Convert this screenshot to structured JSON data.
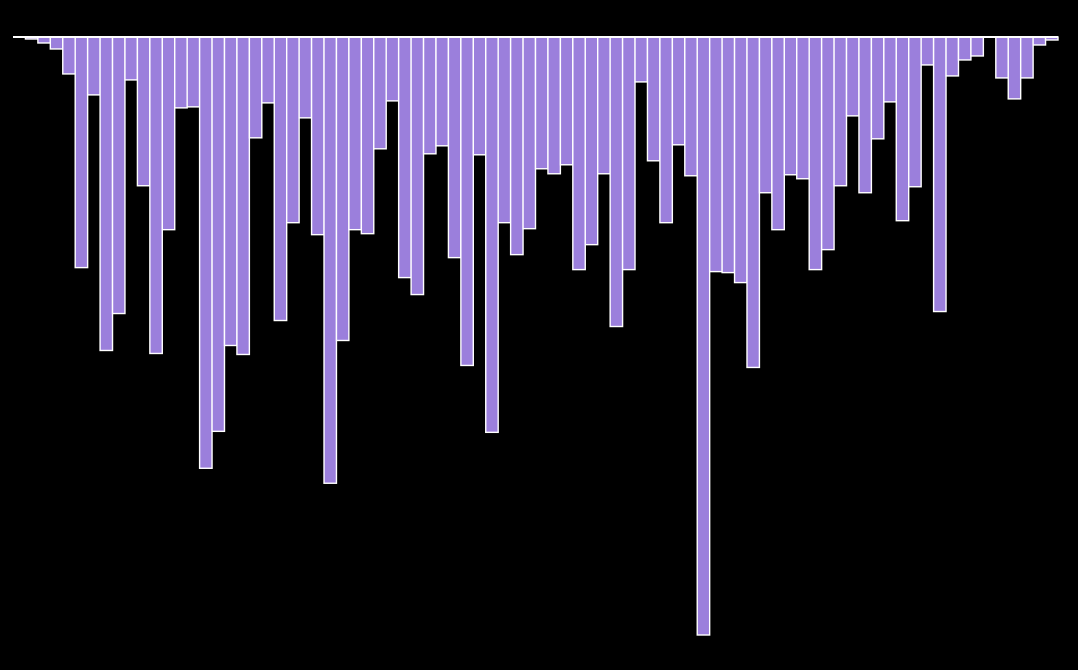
{
  "chart_data": {
    "type": "bar",
    "orientation": "downward",
    "title": "",
    "xlabel": "",
    "ylabel": "",
    "grid": false,
    "legend": "none",
    "ylim": [
      0,
      600
    ],
    "colors": {
      "background": "#000000",
      "bar_fill": "#9b7fdc",
      "bar_stroke": "#ffffff",
      "baseline": "#ffffff"
    },
    "values": [
      0,
      2,
      6,
      12,
      37,
      231,
      58,
      314,
      277,
      43,
      149,
      317,
      193,
      71,
      70,
      432,
      395,
      309,
      318,
      101,
      66,
      284,
      186,
      81,
      198,
      447,
      304,
      193,
      197,
      112,
      64,
      241,
      258,
      117,
      109,
      221,
      329,
      118,
      396,
      186,
      218,
      192,
      132,
      137,
      128,
      233,
      208,
      137,
      290,
      233,
      45,
      124,
      186,
      108,
      139,
      599,
      235,
      236,
      246,
      331,
      156,
      193,
      138,
      142,
      233,
      213,
      149,
      79,
      156,
      102,
      65,
      184,
      150,
      28,
      275,
      39,
      23,
      19,
      0,
      41,
      62,
      41,
      8,
      3
    ]
  }
}
